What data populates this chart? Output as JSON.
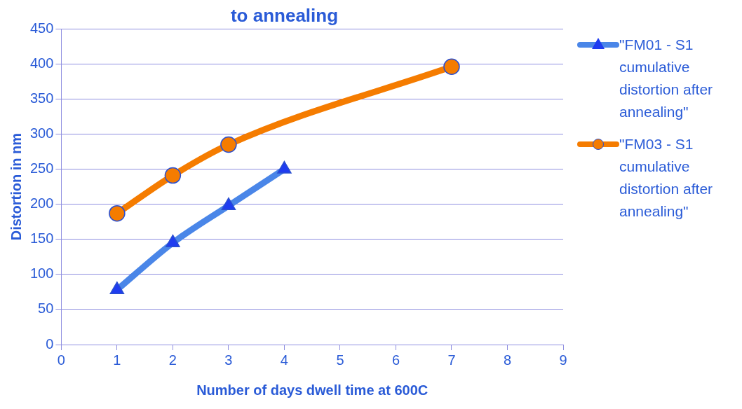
{
  "chart_data": {
    "type": "line",
    "title": "to annealing",
    "xlabel": "Number of days dwell time at 600C",
    "ylabel": "Distortion in nm",
    "xlim": [
      0,
      9
    ],
    "xticks": [
      0,
      1,
      2,
      3,
      4,
      5,
      6,
      7,
      8,
      9
    ],
    "ylim": [
      0,
      450
    ],
    "yticks": [
      0,
      50,
      100,
      150,
      200,
      250,
      300,
      350,
      400,
      450
    ],
    "grid": "y",
    "legend": "right",
    "series": [
      {
        "name": "\"FM01 - S1 cumulative distortion after annealing\"",
        "color": "#4a86e8",
        "marker": "triangle",
        "x": [
          1,
          2,
          3,
          4
        ],
        "values": [
          78,
          145,
          198,
          250
        ]
      },
      {
        "name": "\"FM03 - S1 cumulative distortion after annealing\"",
        "color": "#f57c00",
        "marker": "circle",
        "x": [
          1,
          2,
          3,
          7
        ],
        "values": [
          187,
          241,
          285,
          396
        ]
      }
    ]
  }
}
